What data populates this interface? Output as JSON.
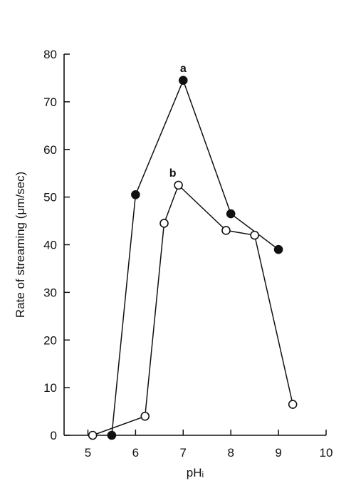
{
  "chart_data": {
    "type": "line",
    "title": "",
    "xlabel": "pHᵢ",
    "ylabel": "Rate of streaming (μm/sec)",
    "xlim": [
      4.5,
      10
    ],
    "ylim": [
      0,
      80
    ],
    "xticks": [
      5,
      6,
      7,
      8,
      9,
      10
    ],
    "yticks": [
      0,
      10,
      20,
      30,
      40,
      50,
      60,
      70,
      80
    ],
    "grid": false,
    "series": [
      {
        "name": "a",
        "marker": "filled-circle",
        "color": "#111111",
        "x": [
          5.5,
          6.0,
          7.0,
          8.0,
          9.0
        ],
        "y": [
          0,
          50.5,
          74.5,
          46.5,
          39
        ]
      },
      {
        "name": "b",
        "marker": "open-circle",
        "color": "#111111",
        "x": [
          5.1,
          6.2,
          6.6,
          6.9,
          7.9,
          8.5,
          9.3
        ],
        "y": [
          0,
          4,
          44.5,
          52.5,
          43,
          42,
          6.5
        ]
      }
    ]
  }
}
